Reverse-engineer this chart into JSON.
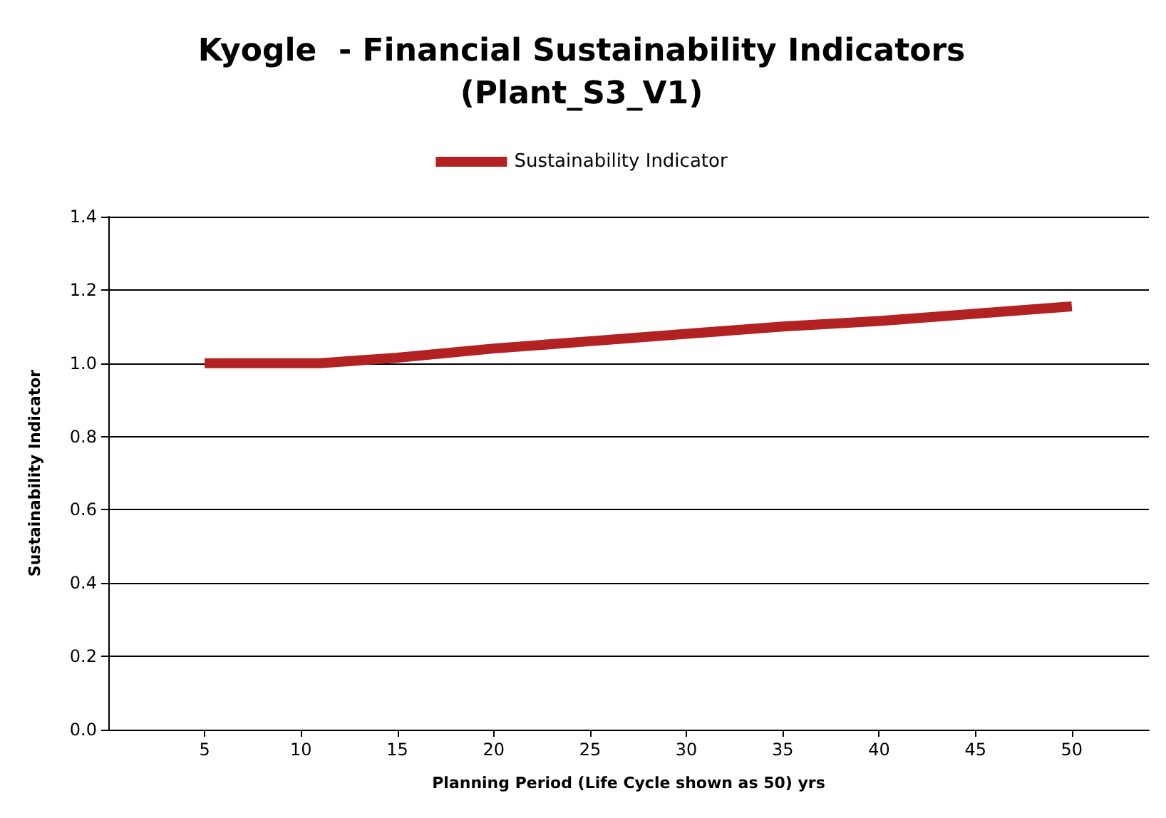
{
  "chart_data": {
    "type": "line",
    "title": "Kyogle  - Financial Sustainability Indicators\n(Plant_S3_V1)",
    "xlabel": "Planning Period (Life Cycle shown as 50) yrs",
    "ylabel": "Sustainability Indicator",
    "x": [
      5,
      10,
      11,
      15,
      20,
      25,
      30,
      35,
      40,
      45,
      50
    ],
    "series": [
      {
        "name": "Sustainability Indicator",
        "color": "#b22222",
        "values": [
          1.0,
          1.0,
          1.0,
          1.015,
          1.04,
          1.06,
          1.08,
          1.1,
          1.115,
          1.135,
          1.155
        ]
      }
    ],
    "xlim": [
      0,
      54
    ],
    "xticks": [
      5,
      10,
      15,
      20,
      25,
      30,
      35,
      40,
      45,
      50
    ],
    "ylim": [
      0,
      1.4
    ],
    "yticks": [
      {
        "value": 0,
        "label": "0.0"
      },
      0.2,
      0.4,
      0.6,
      0.8,
      {
        "value": 1,
        "label": "1.0"
      },
      1.2,
      1.4
    ],
    "grid": "y",
    "legend": "top",
    "marker": "none",
    "line_style": "solid"
  }
}
